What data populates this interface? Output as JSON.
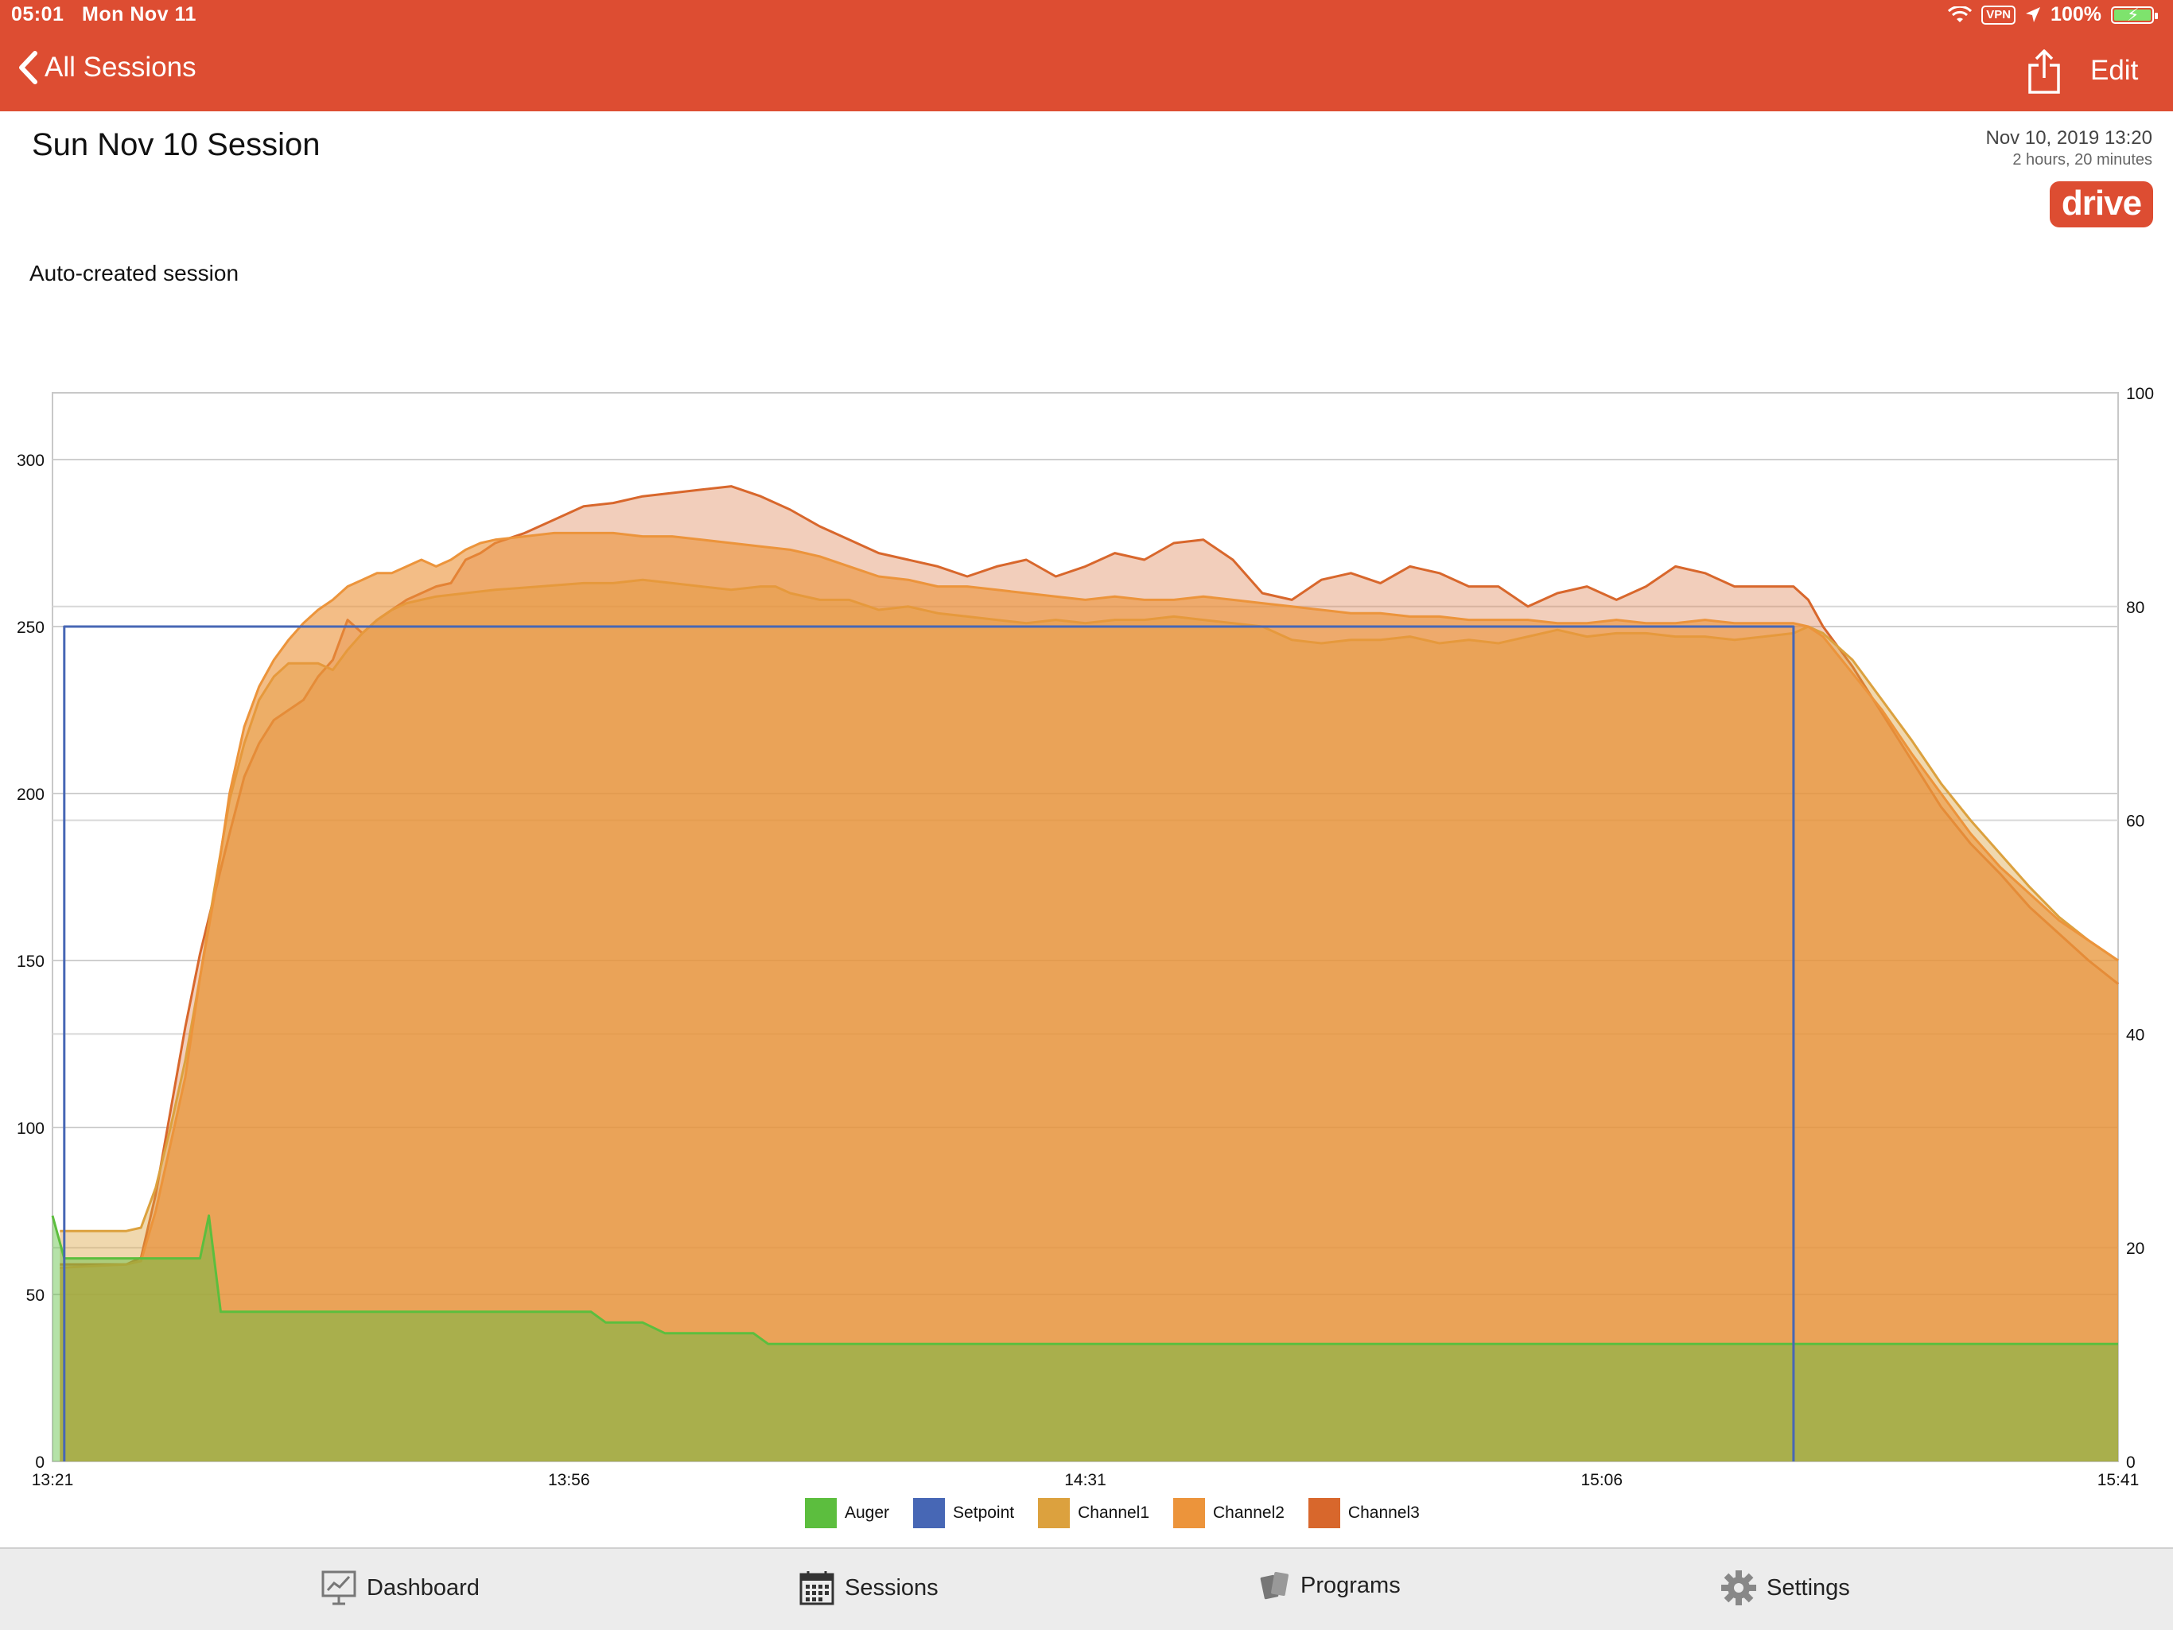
{
  "status_bar": {
    "time": "05:01",
    "date": "Mon Nov 11",
    "vpn": "VPN",
    "battery": "100%"
  },
  "nav": {
    "back_label": "All Sessions",
    "edit_label": "Edit"
  },
  "session": {
    "title": "Sun Nov 10 Session",
    "date": "Nov 10, 2019 13:20",
    "duration": "2 hours, 20 minutes",
    "badge": "drive",
    "description": "Auto-created session"
  },
  "colors": {
    "brand": "#dd4d32",
    "auger": "#5cbe3e",
    "setpoint": "#4767b5",
    "channel1": "#dca13e",
    "channel2": "#ec943b",
    "channel3": "#d8672c"
  },
  "legend": [
    {
      "name": "Auger",
      "color": "#5cbe3e"
    },
    {
      "name": "Setpoint",
      "color": "#4767b5"
    },
    {
      "name": "Channel1",
      "color": "#dca13e"
    },
    {
      "name": "Channel2",
      "color": "#ec943b"
    },
    {
      "name": "Channel3",
      "color": "#d8672c"
    }
  ],
  "tabs": [
    {
      "label": "Dashboard",
      "icon": "dashboard-icon"
    },
    {
      "label": "Sessions",
      "icon": "calendar-icon"
    },
    {
      "label": "Programs",
      "icon": "programs-icon"
    },
    {
      "label": "Settings",
      "icon": "gear-icon"
    }
  ],
  "chart_data": {
    "type": "area",
    "title": "",
    "xlabel": "",
    "ylabel": "",
    "x_ticks": [
      "13:21",
      "13:56",
      "14:31",
      "15:06",
      "15:41"
    ],
    "x_range_minutes": [
      0,
      140
    ],
    "y_left_ticks": [
      0,
      50,
      100,
      150,
      200,
      250,
      300
    ],
    "ylim_left": [
      0,
      320
    ],
    "y_right_ticks": [
      0,
      20,
      40,
      60,
      80,
      100
    ],
    "ylim_right": [
      0,
      100
    ],
    "grid": true,
    "legend_position": "bottom",
    "series": [
      {
        "name": "Auger",
        "axis": "right",
        "points": [
          [
            0,
            23
          ],
          [
            0.8,
            19
          ],
          [
            10,
            19
          ],
          [
            10.6,
            23
          ],
          [
            11.4,
            14
          ],
          [
            36.5,
            14
          ],
          [
            37.5,
            13
          ],
          [
            40,
            13
          ],
          [
            41.5,
            12
          ],
          [
            47.5,
            12
          ],
          [
            48.5,
            11
          ],
          [
            140,
            11
          ]
        ]
      },
      {
        "name": "Setpoint",
        "axis": "left",
        "points": [
          [
            0.8,
            0
          ],
          [
            0.8,
            250
          ],
          [
            118,
            250
          ],
          [
            118,
            0
          ]
        ]
      },
      {
        "name": "Channel1",
        "axis": "left",
        "points": [
          [
            0.5,
            69
          ],
          [
            5,
            69
          ],
          [
            6,
            70
          ],
          [
            7,
            82
          ],
          [
            8,
            100
          ],
          [
            9,
            120
          ],
          [
            10,
            145
          ],
          [
            11,
            172
          ],
          [
            12,
            198
          ],
          [
            13,
            215
          ],
          [
            14,
            228
          ],
          [
            15,
            235
          ],
          [
            16,
            239
          ],
          [
            17,
            239
          ],
          [
            18,
            239
          ],
          [
            19,
            237
          ],
          [
            20,
            243
          ],
          [
            21,
            248
          ],
          [
            22,
            252
          ],
          [
            23,
            255
          ],
          [
            24,
            257
          ],
          [
            25,
            258
          ],
          [
            26,
            259
          ],
          [
            28,
            260
          ],
          [
            30,
            261
          ],
          [
            33,
            262
          ],
          [
            36,
            263
          ],
          [
            38,
            263
          ],
          [
            40,
            264
          ],
          [
            42,
            263
          ],
          [
            44,
            262
          ],
          [
            46,
            261
          ],
          [
            48,
            262
          ],
          [
            49,
            262
          ],
          [
            50,
            260
          ],
          [
            52,
            258
          ],
          [
            54,
            258
          ],
          [
            56,
            255
          ],
          [
            58,
            256
          ],
          [
            60,
            254
          ],
          [
            62,
            253
          ],
          [
            64,
            252
          ],
          [
            66,
            251
          ],
          [
            68,
            252
          ],
          [
            70,
            251
          ],
          [
            72,
            252
          ],
          [
            74,
            252
          ],
          [
            76,
            253
          ],
          [
            78,
            252
          ],
          [
            80,
            251
          ],
          [
            82,
            250
          ],
          [
            84,
            246
          ],
          [
            86,
            245
          ],
          [
            88,
            246
          ],
          [
            90,
            246
          ],
          [
            92,
            247
          ],
          [
            94,
            245
          ],
          [
            96,
            246
          ],
          [
            98,
            245
          ],
          [
            100,
            247
          ],
          [
            102,
            249
          ],
          [
            104,
            247
          ],
          [
            106,
            248
          ],
          [
            108,
            248
          ],
          [
            110,
            247
          ],
          [
            112,
            247
          ],
          [
            114,
            246
          ],
          [
            116,
            247
          ],
          [
            118,
            248
          ],
          [
            119,
            250
          ],
          [
            120,
            248
          ],
          [
            122,
            240
          ],
          [
            124,
            228
          ],
          [
            126,
            216
          ],
          [
            128,
            203
          ],
          [
            130,
            192
          ],
          [
            132,
            182
          ],
          [
            134,
            172
          ],
          [
            136,
            163
          ],
          [
            138,
            156
          ],
          [
            140,
            150
          ]
        ]
      },
      {
        "name": "Channel2",
        "axis": "left",
        "points": [
          [
            0.5,
            58
          ],
          [
            5,
            59
          ],
          [
            6,
            60
          ],
          [
            7,
            75
          ],
          [
            8,
            95
          ],
          [
            9,
            115
          ],
          [
            10,
            145
          ],
          [
            11,
            170
          ],
          [
            12,
            200
          ],
          [
            13,
            220
          ],
          [
            14,
            232
          ],
          [
            15,
            240
          ],
          [
            16,
            246
          ],
          [
            17,
            251
          ],
          [
            18,
            255
          ],
          [
            19,
            258
          ],
          [
            20,
            262
          ],
          [
            21,
            264
          ],
          [
            22,
            266
          ],
          [
            23,
            266
          ],
          [
            24,
            268
          ],
          [
            25,
            270
          ],
          [
            26,
            268
          ],
          [
            27,
            270
          ],
          [
            28,
            273
          ],
          [
            29,
            275
          ],
          [
            30,
            276
          ],
          [
            32,
            277
          ],
          [
            34,
            278
          ],
          [
            36,
            278
          ],
          [
            38,
            278
          ],
          [
            40,
            277
          ],
          [
            42,
            277
          ],
          [
            44,
            276
          ],
          [
            46,
            275
          ],
          [
            48,
            274
          ],
          [
            50,
            273
          ],
          [
            52,
            271
          ],
          [
            54,
            268
          ],
          [
            56,
            265
          ],
          [
            58,
            264
          ],
          [
            60,
            262
          ],
          [
            62,
            262
          ],
          [
            64,
            261
          ],
          [
            66,
            260
          ],
          [
            68,
            259
          ],
          [
            70,
            258
          ],
          [
            72,
            259
          ],
          [
            74,
            258
          ],
          [
            76,
            258
          ],
          [
            78,
            259
          ],
          [
            80,
            258
          ],
          [
            82,
            257
          ],
          [
            84,
            256
          ],
          [
            86,
            255
          ],
          [
            88,
            254
          ],
          [
            90,
            254
          ],
          [
            92,
            253
          ],
          [
            94,
            253
          ],
          [
            96,
            252
          ],
          [
            98,
            252
          ],
          [
            100,
            252
          ],
          [
            102,
            251
          ],
          [
            104,
            251
          ],
          [
            106,
            252
          ],
          [
            108,
            251
          ],
          [
            110,
            251
          ],
          [
            112,
            252
          ],
          [
            114,
            251
          ],
          [
            116,
            251
          ],
          [
            118,
            251
          ],
          [
            119,
            250
          ],
          [
            120,
            247
          ],
          [
            122,
            236
          ],
          [
            124,
            225
          ],
          [
            126,
            212
          ],
          [
            128,
            200
          ],
          [
            130,
            188
          ],
          [
            132,
            178
          ],
          [
            134,
            170
          ],
          [
            136,
            162
          ],
          [
            138,
            156
          ],
          [
            140,
            150
          ]
        ]
      },
      {
        "name": "Channel3",
        "axis": "left",
        "points": [
          [
            0.5,
            59
          ],
          [
            5,
            59
          ],
          [
            6,
            61
          ],
          [
            7,
            80
          ],
          [
            8,
            105
          ],
          [
            9,
            130
          ],
          [
            10,
            152
          ],
          [
            11,
            170
          ],
          [
            12,
            188
          ],
          [
            13,
            205
          ],
          [
            14,
            215
          ],
          [
            15,
            222
          ],
          [
            16,
            225
          ],
          [
            17,
            228
          ],
          [
            18,
            235
          ],
          [
            19,
            240
          ],
          [
            20,
            252
          ],
          [
            21,
            248
          ],
          [
            22,
            252
          ],
          [
            23,
            255
          ],
          [
            24,
            258
          ],
          [
            25,
            260
          ],
          [
            26,
            262
          ],
          [
            27,
            263
          ],
          [
            28,
            270
          ],
          [
            29,
            272
          ],
          [
            30,
            275
          ],
          [
            32,
            278
          ],
          [
            34,
            282
          ],
          [
            36,
            286
          ],
          [
            38,
            287
          ],
          [
            40,
            289
          ],
          [
            42,
            290
          ],
          [
            44,
            291
          ],
          [
            46,
            292
          ],
          [
            48,
            289
          ],
          [
            50,
            285
          ],
          [
            52,
            280
          ],
          [
            54,
            276
          ],
          [
            56,
            272
          ],
          [
            58,
            270
          ],
          [
            60,
            268
          ],
          [
            62,
            265
          ],
          [
            64,
            268
          ],
          [
            66,
            270
          ],
          [
            68,
            265
          ],
          [
            70,
            268
          ],
          [
            72,
            272
          ],
          [
            74,
            270
          ],
          [
            76,
            275
          ],
          [
            78,
            276
          ],
          [
            80,
            270
          ],
          [
            82,
            260
          ],
          [
            84,
            258
          ],
          [
            86,
            264
          ],
          [
            88,
            266
          ],
          [
            90,
            263
          ],
          [
            92,
            268
          ],
          [
            94,
            266
          ],
          [
            96,
            262
          ],
          [
            98,
            262
          ],
          [
            100,
            256
          ],
          [
            102,
            260
          ],
          [
            104,
            262
          ],
          [
            106,
            258
          ],
          [
            108,
            262
          ],
          [
            110,
            268
          ],
          [
            112,
            266
          ],
          [
            114,
            262
          ],
          [
            116,
            262
          ],
          [
            118,
            262
          ],
          [
            119,
            258
          ],
          [
            120,
            250
          ],
          [
            122,
            238
          ],
          [
            124,
            224
          ],
          [
            126,
            210
          ],
          [
            128,
            196
          ],
          [
            130,
            185
          ],
          [
            132,
            176
          ],
          [
            134,
            166
          ],
          [
            136,
            158
          ],
          [
            138,
            150
          ],
          [
            140,
            143
          ]
        ]
      }
    ]
  }
}
